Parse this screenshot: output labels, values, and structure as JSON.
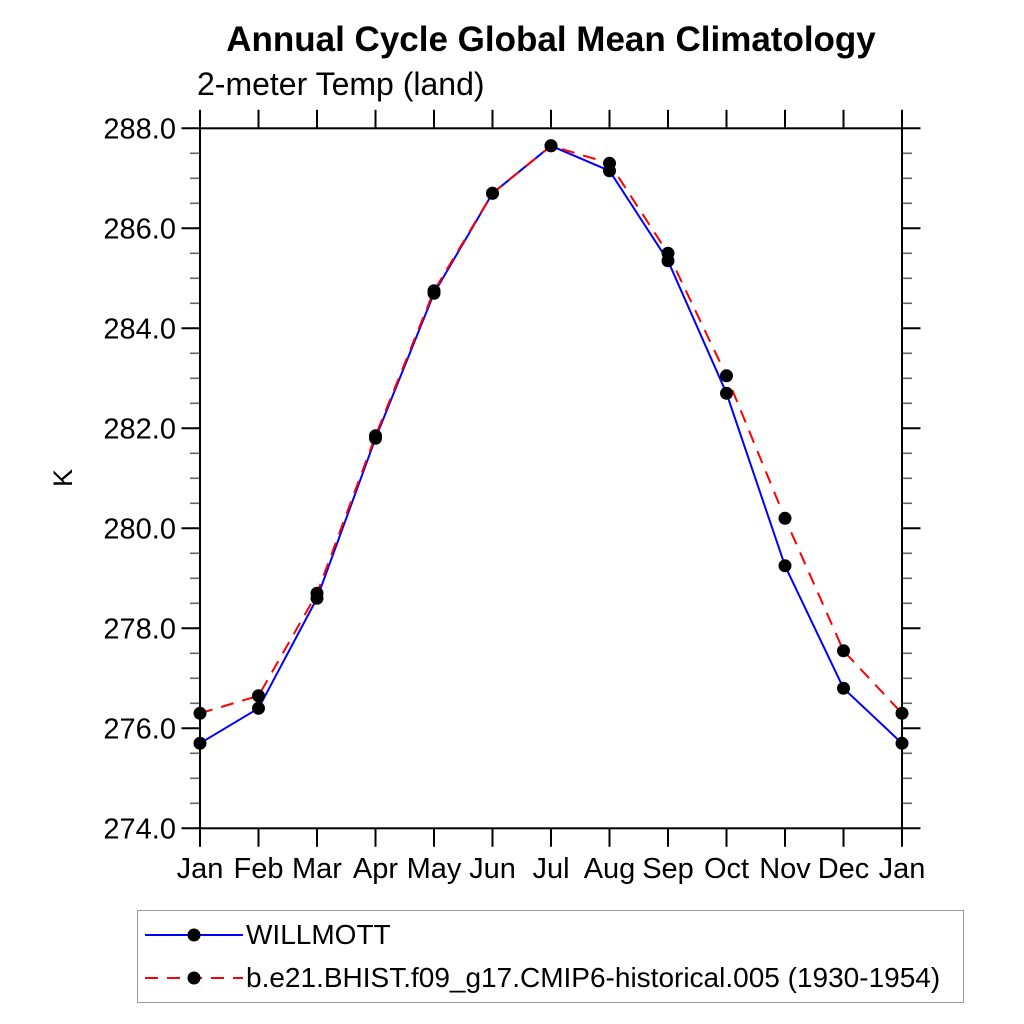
{
  "chart_data": {
    "type": "line",
    "title": "Annual Cycle Global Mean Climatology",
    "subtitle": "2-meter Temp (land)",
    "xlabel": "",
    "ylabel": "K",
    "categories": [
      "Jan",
      "Feb",
      "Mar",
      "Apr",
      "May",
      "Jun",
      "Jul",
      "Aug",
      "Sep",
      "Oct",
      "Nov",
      "Dec",
      "Jan"
    ],
    "ylim": [
      274.0,
      288.0
    ],
    "ytick_step": 2.0,
    "ytick_labels": [
      "274.0",
      "276.0",
      "278.0",
      "280.0",
      "282.0",
      "284.0",
      "286.0",
      "288.0"
    ],
    "yminor_step": 0.5,
    "grid": false,
    "legend_position": "bottom-left",
    "marker_color": "#000000",
    "axis_color": "#000000",
    "minor_tick_color": "#666666",
    "series": [
      {
        "name": "WILLMOTT",
        "color": "#0000ff",
        "style": "solid",
        "values": [
          275.7,
          276.4,
          278.6,
          281.8,
          284.7,
          286.7,
          287.65,
          287.15,
          285.35,
          282.7,
          279.25,
          276.8,
          275.7
        ]
      },
      {
        "name": "b.e21.BHIST.f09_g17.CMIP6-historical.005 (1930-1954)",
        "color": "#ff0000",
        "style": "dashed",
        "values": [
          276.3,
          276.65,
          278.7,
          281.85,
          284.75,
          286.7,
          287.65,
          287.3,
          285.5,
          283.05,
          280.2,
          277.55,
          276.3
        ]
      }
    ]
  }
}
